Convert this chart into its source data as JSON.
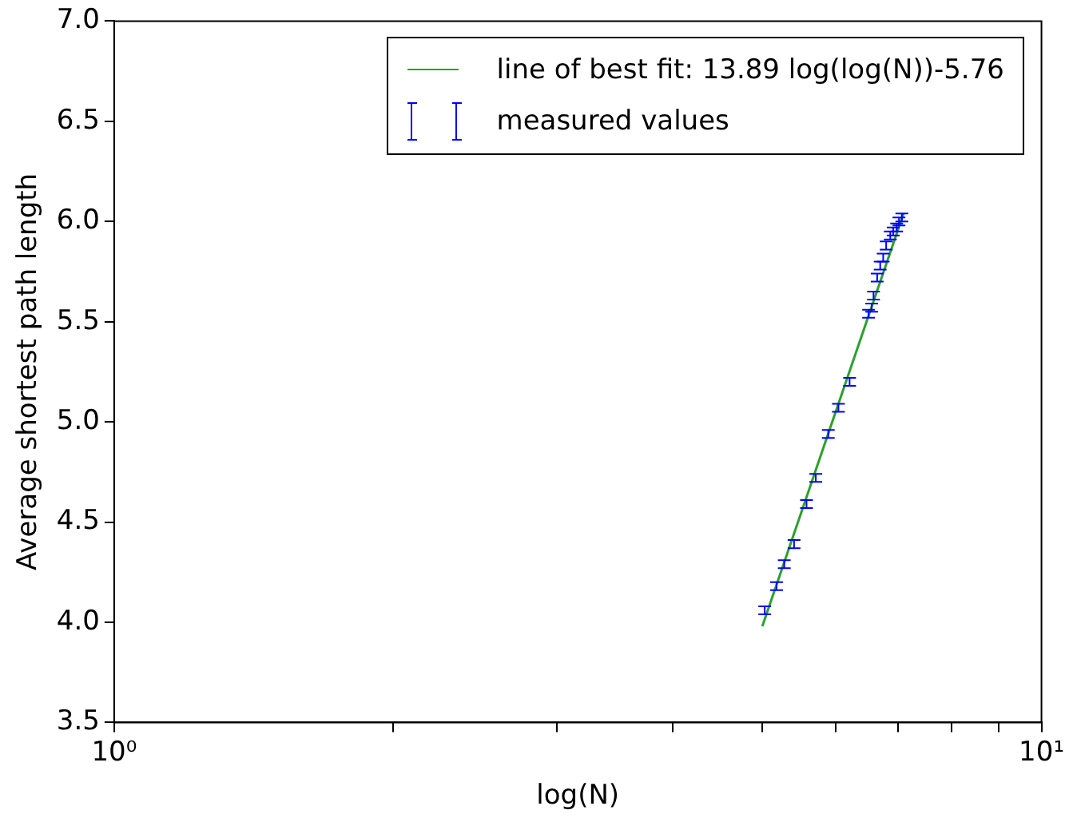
{
  "chart_data": {
    "type": "scatter",
    "xlabel": "log(N)",
    "ylabel": "Average shortest path length",
    "log": "x",
    "xlim": [
      1,
      10
    ],
    "xticks": [
      {
        "value": 1,
        "label": "10⁰"
      },
      {
        "value": 2,
        "label": null
      },
      {
        "value": 3,
        "label": null
      },
      {
        "value": 4,
        "label": null
      },
      {
        "value": 5,
        "label": null
      },
      {
        "value": 6,
        "label": null
      },
      {
        "value": 7,
        "label": null
      },
      {
        "value": 8,
        "label": null
      },
      {
        "value": 9,
        "label": null
      },
      {
        "value": 10,
        "label": "10¹"
      }
    ],
    "ylim": [
      3.5,
      7.0
    ],
    "yticks": [
      {
        "value": 3.5,
        "label": "3.5"
      },
      {
        "value": 4,
        "label": "4.0"
      },
      {
        "value": 4.5,
        "label": "4.5"
      },
      {
        "value": 5,
        "label": "5.0"
      },
      {
        "value": 5.5,
        "label": "5.5"
      },
      {
        "value": 6,
        "label": "6.0"
      },
      {
        "value": 6.5,
        "label": "6.5"
      },
      {
        "value": 7,
        "label": "7.0"
      }
    ],
    "grid": false,
    "legend": "top right",
    "series": [
      {
        "name": "line of best fit: 13.89 log(log(N))-5.76",
        "type": "line",
        "color": "#2ca02c",
        "line_style": "solid",
        "x": [
          5.0,
          7.1
        ],
        "values": [
          3.98,
          6.04
        ]
      },
      {
        "name": "measured values",
        "type": "scatter",
        "color": "#0000ff",
        "x": [
          5.03,
          5.18,
          5.28,
          5.41,
          5.58,
          5.71,
          5.89,
          6.04,
          6.21,
          6.51,
          6.56,
          6.59,
          6.65,
          6.7,
          6.75,
          6.8,
          6.87,
          6.92,
          6.98,
          7.02,
          7.07
        ],
        "values": [
          4.06,
          4.18,
          4.29,
          4.39,
          4.59,
          4.72,
          4.94,
          5.07,
          5.2,
          5.54,
          5.57,
          5.63,
          5.72,
          5.78,
          5.82,
          5.88,
          5.93,
          5.95,
          5.97,
          6.0,
          6.02
        ],
        "errors": [
          0.02,
          0.02,
          0.02,
          0.02,
          0.02,
          0.02,
          0.02,
          0.02,
          0.02,
          0.02,
          0.02,
          0.02,
          0.02,
          0.02,
          0.02,
          0.02,
          0.02,
          0.02,
          0.02,
          0.02,
          0.02
        ]
      }
    ]
  }
}
